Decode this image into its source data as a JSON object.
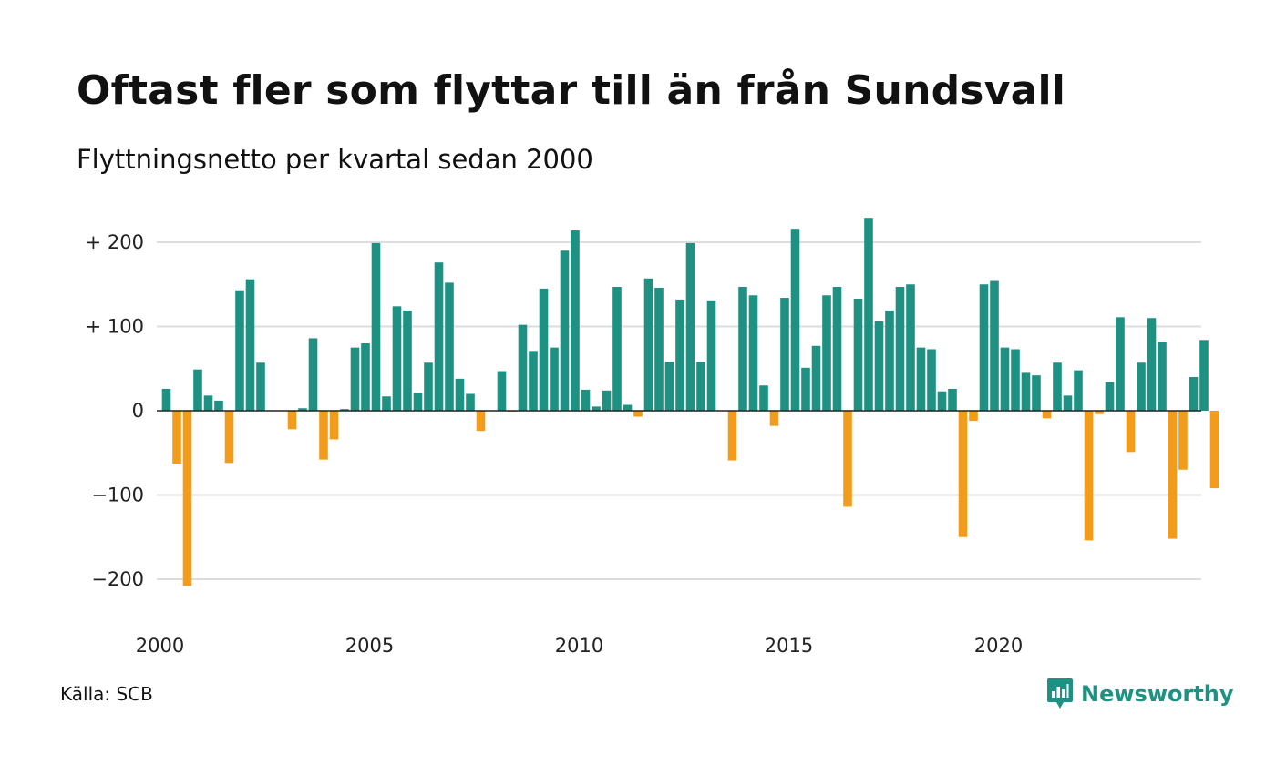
{
  "header": {
    "title": "Oftast fler som flyttar till än från Sundsvall",
    "subtitle": "Flyttningsnetto per kvartal sedan 2000"
  },
  "footer": {
    "source": "Källa: SCB",
    "brand": "Newsworthy",
    "brand_icon": "newsworthy-chart-bubble-icon"
  },
  "colors": {
    "positive": "#1f9182",
    "negative": "#f39c1b",
    "grid": "#dddddd",
    "zero_line": "#222222",
    "brand": "#1f9182"
  },
  "chart_data": {
    "type": "bar",
    "title": "Oftast fler som flyttar till än från Sundsvall",
    "subtitle": "Flyttningsnetto per kvartal sedan 2000",
    "xlabel": "",
    "ylabel": "",
    "x_ticks": [
      2000,
      2005,
      2010,
      2015,
      2020
    ],
    "y_ticks": [
      {
        "value": 200,
        "label": "+ 200"
      },
      {
        "value": 100,
        "label": "+ 100"
      },
      {
        "value": 0,
        "label": "0"
      },
      {
        "value": -100,
        "label": "−100"
      },
      {
        "value": -200,
        "label": "−200"
      }
    ],
    "ylim": [
      -230,
      230
    ],
    "grid": true,
    "legend": "none",
    "series": [
      {
        "x_start": "2000 Q1",
        "values": [
          26,
          -63,
          -208,
          49,
          18,
          12,
          -62,
          143,
          156,
          57,
          0,
          0,
          -22,
          3,
          86,
          -58,
          -34,
          2,
          75,
          80,
          199,
          17,
          124,
          119,
          21,
          57,
          176,
          152,
          38,
          20,
          -24,
          0,
          47,
          -1,
          102,
          71,
          145,
          75,
          190,
          214,
          25,
          5,
          24,
          147,
          7,
          -7,
          157,
          146,
          58,
          132,
          199,
          58,
          131,
          0,
          -59,
          147,
          137,
          30,
          -18,
          134,
          216,
          51,
          77,
          137,
          147,
          -114,
          133,
          229,
          106,
          119,
          147,
          150,
          75,
          73,
          23,
          26,
          -150,
          -12,
          150,
          154,
          75,
          73,
          45,
          42,
          -9,
          57,
          18,
          48,
          -154,
          -4,
          34,
          111,
          -49,
          57,
          110,
          82,
          -152,
          -70,
          40,
          84,
          -92
        ]
      }
    ]
  }
}
